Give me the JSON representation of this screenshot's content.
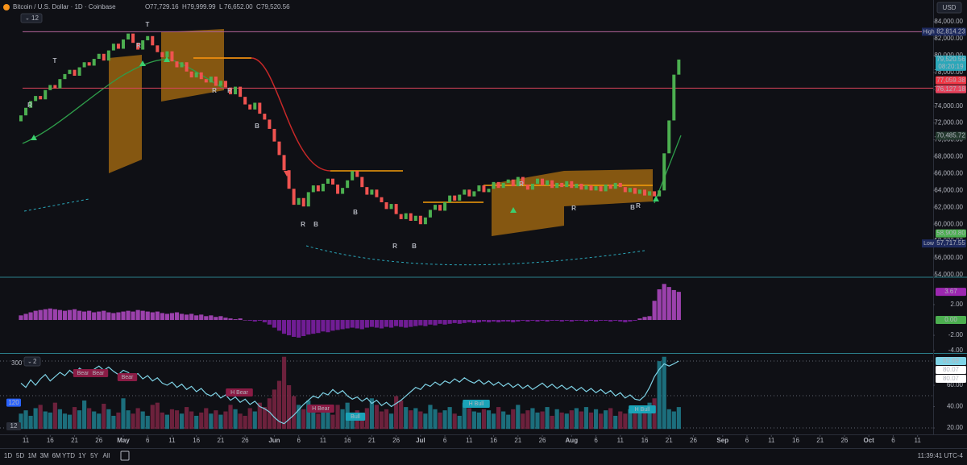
{
  "header": {
    "symbol": "Bitcoin / U.S. Dollar · 1D · Coinbase",
    "ohlc": [
      {
        "key": "O",
        "value": 77729.16,
        "label": "77,729.16"
      },
      {
        "key": "H",
        "value": 79999.99,
        "label": "79,999.99"
      },
      {
        "key": "L",
        "value": 76652.0,
        "label": "76,652.00"
      },
      {
        "key": "C",
        "value": 79520.56,
        "label": "79,520.56"
      }
    ],
    "indicator_count": 12
  },
  "currency": "USD",
  "chart_data": [
    {
      "type": "candlestick",
      "up_color": "#4caf50",
      "down_color": "#ef5350",
      "open": [
        72200,
        72900,
        73800,
        74600,
        75200,
        74800,
        75900,
        76500,
        76100,
        77200,
        77800,
        78300,
        77600,
        78600,
        79200,
        78800,
        79600,
        80200,
        79400,
        80600,
        81400,
        80800,
        81900,
        82600,
        81500,
        80700,
        81800,
        82300,
        81200,
        80400,
        79800,
        80500,
        79300,
        78600,
        79200,
        78100,
        77400,
        78000,
        77200,
        76800,
        77500,
        76400,
        77000,
        76200,
        75400,
        76300,
        75100,
        74200,
        73600,
        74400,
        73100,
        72400,
        71300,
        69800,
        68200,
        66400,
        64200,
        62300,
        63100,
        62100,
        63800,
        64600,
        63900,
        64800,
        65400,
        64700,
        63600,
        64300,
        65200,
        66300,
        65600,
        64400,
        63500,
        64100,
        63200,
        62600,
        61800,
        62400,
        61200,
        60600,
        61300,
        60400,
        61000,
        60000,
        60800,
        61700,
        62300,
        61600,
        62600,
        63400,
        62800,
        63500,
        64100,
        63300,
        63900,
        64600,
        63800,
        64200,
        65000,
        64300,
        64900,
        65300,
        64500,
        65600,
        64700,
        64100,
        64800,
        65400,
        64600,
        65200,
        64300,
        64900,
        64400,
        65100,
        64300,
        64800,
        64100,
        64600,
        64000,
        64500,
        63900,
        64700,
        64200,
        64900,
        64400,
        63800,
        64300,
        63600,
        64100,
        63400,
        63900,
        63300,
        64000,
        68400,
        72300,
        77729.16
      ],
      "close": [
        72900,
        73800,
        74600,
        75200,
        74800,
        75900,
        76500,
        76100,
        77200,
        77800,
        78300,
        77600,
        78600,
        79200,
        78800,
        79600,
        80200,
        79400,
        80600,
        81400,
        80800,
        81900,
        82600,
        81500,
        80700,
        81800,
        82300,
        81200,
        80400,
        79800,
        80500,
        79300,
        78600,
        79200,
        78100,
        77400,
        78000,
        77200,
        76800,
        77500,
        76400,
        77000,
        76200,
        75400,
        76300,
        75100,
        74200,
        73600,
        74400,
        73100,
        72400,
        71300,
        69800,
        68200,
        66400,
        64200,
        62300,
        63100,
        62100,
        63800,
        64600,
        63900,
        64800,
        65400,
        64700,
        63600,
        64300,
        65200,
        66300,
        65600,
        64400,
        63500,
        64100,
        63200,
        62600,
        61800,
        62400,
        61200,
        60600,
        61300,
        60400,
        61000,
        60000,
        60800,
        61700,
        62300,
        61600,
        62600,
        63400,
        62800,
        63500,
        64100,
        63300,
        63900,
        64600,
        63800,
        64200,
        65000,
        64300,
        64900,
        65300,
        64500,
        65600,
        64700,
        64100,
        64800,
        65400,
        64600,
        65200,
        64300,
        64900,
        64400,
        65100,
        64300,
        64800,
        64100,
        64600,
        64000,
        64500,
        63900,
        64700,
        64200,
        64900,
        64400,
        63800,
        64300,
        63600,
        64100,
        63400,
        63900,
        63300,
        64000,
        68400,
        72300,
        77729.16,
        79520.56
      ],
      "xlim": [
        -4.3,
        187.2
      ],
      "xticks": [
        {
          "value": 1,
          "label": "11"
        },
        {
          "value": 6,
          "label": "16"
        },
        {
          "value": 11,
          "label": "21"
        },
        {
          "value": 16,
          "label": "26"
        },
        {
          "value": 21,
          "label": "May"
        },
        {
          "value": 26,
          "label": "6"
        },
        {
          "value": 31,
          "label": "11"
        },
        {
          "value": 36,
          "label": "16"
        },
        {
          "value": 41,
          "label": "21"
        },
        {
          "value": 46,
          "label": "26"
        },
        {
          "value": 52,
          "label": "Jun"
        },
        {
          "value": 57,
          "label": "6"
        },
        {
          "value": 62,
          "label": "11"
        },
        {
          "value": 67,
          "label": "16"
        },
        {
          "value": 72,
          "label": "21"
        },
        {
          "value": 77,
          "label": "26"
        },
        {
          "value": 82,
          "label": "Jul"
        },
        {
          "value": 87,
          "label": "6"
        },
        {
          "value": 92,
          "label": "11"
        },
        {
          "value": 97,
          "label": "16"
        },
        {
          "value": 102,
          "label": "21"
        },
        {
          "value": 107,
          "label": "26"
        },
        {
          "value": 113,
          "label": "Aug"
        },
        {
          "value": 118,
          "label": "6"
        },
        {
          "value": 123,
          "label": "11"
        },
        {
          "value": 128,
          "label": "16"
        },
        {
          "value": 133,
          "label": "21"
        },
        {
          "value": 138,
          "label": "26"
        },
        {
          "value": 144,
          "label": "Sep"
        },
        {
          "value": 149,
          "label": "6"
        },
        {
          "value": 154,
          "label": "11"
        },
        {
          "value": 159,
          "label": "16"
        },
        {
          "value": 164,
          "label": "21"
        },
        {
          "value": 169,
          "label": "26"
        },
        {
          "value": 174,
          "label": "Oct"
        },
        {
          "value": 179,
          "label": "6"
        },
        {
          "value": 184,
          "label": "11"
        }
      ],
      "ylim": [
        53809,
        85242
      ],
      "yticks": [
        {
          "value": 84000,
          "label": "84,000.00"
        },
        {
          "value": 82000,
          "label": "82,000.00"
        },
        {
          "value": 80000,
          "label": "80,000.00"
        },
        {
          "value": 78000,
          "label": "78,000.00"
        },
        {
          "value": 76000,
          "label": "76,000.00"
        },
        {
          "value": 74000,
          "label": "74,000.00"
        },
        {
          "value": 72000,
          "label": "72,000.00"
        },
        {
          "value": 70000,
          "label": "70,000.00"
        },
        {
          "value": 68000,
          "label": "68,000.00"
        },
        {
          "value": 66000,
          "label": "66,000.00"
        },
        {
          "value": 64000,
          "label": "64,000.00"
        },
        {
          "value": 62000,
          "label": "62,000.00"
        },
        {
          "value": 60000,
          "label": "60,000.00"
        },
        {
          "value": 58000,
          "label": "58,000.00"
        },
        {
          "value": 56000,
          "label": "56,000.00"
        },
        {
          "value": 54000,
          "label": "54,000.00"
        }
      ],
      "price_labels": [
        {
          "value": 82814.23,
          "label": "82,814.23",
          "tag": "High",
          "color": "#1e2a5e",
          "text_color": "#ffffff",
          "line": "#b5649b"
        },
        {
          "value": 79520.56,
          "label": "79,520.56",
          "sublabel": "08:20:19",
          "color": "#2aa7b9",
          "text_color": "#ffffff"
        },
        {
          "value": 77059.38,
          "label": "77,059.38",
          "color": "#f23645",
          "text_color": "#ffffff"
        },
        {
          "value": 76127.18,
          "label": "76,127.18",
          "color": "#e8435d",
          "text_color": "#ffffff",
          "line": "#d8435a"
        },
        {
          "value": 70485.72,
          "label": "70,485.72",
          "color": "#23392e",
          "text_color": "#d1d4dc"
        },
        {
          "value": 58909.8,
          "label": "58,909.80",
          "color": "#4caf50",
          "text_color": "#ffffff"
        },
        {
          "value": 57717.55,
          "label": "57,717.55",
          "tag": "Low",
          "color": "#1e2a5e",
          "text_color": "#ffffff"
        }
      ]
    },
    {
      "type": "histogram",
      "up_color": "#ab47bc",
      "down_color": "#7b1fa2",
      "values": [
        0.6,
        0.8,
        1.0,
        1.2,
        1.3,
        1.4,
        1.5,
        1.4,
        1.3,
        1.2,
        1.3,
        1.4,
        1.2,
        1.1,
        1.2,
        1.0,
        1.1,
        1.2,
        1.0,
        0.9,
        1.0,
        1.1,
        1.2,
        1.1,
        1.3,
        1.2,
        1.1,
        1.0,
        1.1,
        0.9,
        0.8,
        0.9,
        1.0,
        0.8,
        0.7,
        0.8,
        0.6,
        0.7,
        0.5,
        0.6,
        0.4,
        0.5,
        0.3,
        0.2,
        0.1,
        0.2,
        0.0,
        -0.1,
        -0.2,
        -0.1,
        -0.3,
        -0.6,
        -1.0,
        -1.4,
        -1.8,
        -2.0,
        -2.2,
        -2.3,
        -2.1,
        -1.9,
        -1.8,
        -1.7,
        -1.5,
        -1.6,
        -1.4,
        -1.3,
        -1.2,
        -1.1,
        -1.0,
        -1.1,
        -1.2,
        -1.0,
        -0.9,
        -1.0,
        -1.1,
        -0.9,
        -1.0,
        -0.8,
        -0.9,
        -1.0,
        -0.9,
        -0.8,
        -0.7,
        -0.8,
        -0.6,
        -0.7,
        -0.5,
        -0.6,
        -0.5,
        -0.4,
        -0.5,
        -0.4,
        -0.3,
        -0.4,
        -0.3,
        -0.2,
        -0.3,
        -0.2,
        -0.3,
        -0.2,
        -0.2,
        -0.3,
        -0.2,
        -0.1,
        -0.2,
        -0.1,
        -0.2,
        -0.1,
        -0.2,
        -0.1,
        -0.1,
        -0.2,
        -0.1,
        -0.2,
        -0.1,
        -0.1,
        -0.2,
        -0.1,
        -0.2,
        -0.1,
        -0.1,
        -0.2,
        -0.1,
        -0.2,
        -0.3,
        -0.2,
        -0.1,
        0.2,
        0.4,
        0.5,
        2.5,
        4.0,
        4.7,
        4.3,
        3.9,
        3.67
      ],
      "ylim": [
        -4.2,
        5.47
      ],
      "yticks": [
        {
          "value": 2,
          "label": "2.00"
        },
        {
          "value": -2,
          "label": "-2.00"
        },
        {
          "value": -4,
          "label": "-4.00"
        }
      ],
      "price_labels": [
        {
          "value": 3.67,
          "label": "3.67",
          "color": "#9c27b0",
          "text_color": "#ffffff"
        },
        {
          "value": 0,
          "label": "0.00",
          "color": "#4caf50",
          "text_color": "#ffffff"
        }
      ]
    },
    {
      "type": "bar-line",
      "up_color": "#1f7f8e",
      "down_color": "#7d2443",
      "line_color": "#7fd3e6",
      "indicator_count": 2,
      "bars": [
        70,
        85,
        60,
        95,
        110,
        80,
        75,
        120,
        90,
        70,
        65,
        100,
        85,
        130,
        95,
        80,
        70,
        115,
        90,
        60,
        75,
        140,
        85,
        70,
        95,
        80,
        60,
        110,
        120,
        75,
        65,
        90,
        85,
        70,
        100,
        80,
        60,
        75,
        95,
        70,
        85,
        65,
        80,
        110,
        90,
        70,
        60,
        95,
        80,
        120,
        100,
        140,
        180,
        220,
        330,
        200,
        150,
        110,
        90,
        130,
        85,
        70,
        95,
        80,
        65,
        110,
        90,
        120,
        75,
        85,
        70,
        95,
        140,
        110,
        80,
        90,
        70,
        150,
        130,
        100,
        85,
        95,
        80,
        70,
        110,
        90,
        75,
        85,
        100,
        70,
        60,
        120,
        95,
        80,
        75,
        90,
        85,
        70,
        100,
        80,
        65,
        90,
        110,
        70,
        85,
        95,
        75,
        80,
        100,
        60,
        90,
        75,
        70,
        85,
        95,
        80,
        100,
        75,
        90,
        70,
        85,
        95,
        60,
        80,
        70,
        90,
        75,
        85,
        100,
        120,
        140,
        310,
        330,
        90,
        80,
        100
      ],
      "line": [
        62,
        58,
        65,
        60,
        66,
        70,
        64,
        68,
        72,
        69,
        74,
        70,
        76,
        73,
        71,
        75,
        78,
        74,
        77,
        73,
        70,
        74,
        72,
        68,
        71,
        66,
        69,
        64,
        67,
        62,
        60,
        63,
        58,
        61,
        56,
        59,
        54,
        57,
        52,
        50,
        53,
        48,
        51,
        46,
        49,
        44,
        47,
        42,
        45,
        40,
        38,
        35,
        30,
        26,
        24,
        28,
        32,
        37,
        42,
        46,
        50,
        48,
        53,
        51,
        56,
        52,
        55,
        50,
        47,
        49,
        45,
        48,
        43,
        46,
        41,
        44,
        40,
        43,
        46,
        50,
        54,
        58,
        56,
        61,
        59,
        63,
        60,
        64,
        62,
        66,
        63,
        67,
        64,
        62,
        65,
        61,
        64,
        60,
        63,
        59,
        62,
        58,
        61,
        57,
        60,
        56,
        59,
        62,
        58,
        61,
        57,
        60,
        56,
        59,
        55,
        58,
        54,
        57,
        53,
        56,
        52,
        55,
        50,
        53,
        48,
        51,
        47,
        46,
        50,
        58,
        68,
        75,
        80,
        78,
        80.07,
        82.69
      ],
      "ylim": [
        -25,
        340
      ],
      "yticks": [
        300
      ],
      "left_labels": [
        {
          "value": 120,
          "color": "#2962ff",
          "text_color": "#ffffff"
        },
        {
          "value": 12,
          "color": "#2a2e39",
          "text_color": "#d1d4dc"
        }
      ],
      "y2lim": [
        14,
        88.7
      ],
      "y2ticks": [
        {
          "value": 60,
          "label": "60.00"
        },
        {
          "value": 40,
          "label": "40.00"
        },
        {
          "value": 20,
          "label": "20.00"
        }
      ],
      "right_labels": [
        {
          "value": 82.69,
          "color": "#7fd3e6",
          "text_color": "#0f1015"
        },
        {
          "value": 80.07,
          "color": "#ffffff",
          "text_color": "#0f1015"
        },
        {
          "value": 80.07,
          "color": "#ffffff",
          "text_color": "#0f1015"
        }
      ],
      "tags": [
        {
          "text": "Bear",
          "color": "#8a1c45"
        },
        {
          "text": "Bear",
          "color": "#8a1c45"
        },
        {
          "text": "Bear",
          "color": "#8a1c45"
        },
        {
          "text": "H Bear",
          "color": "#8a1c45"
        },
        {
          "text": "H Bear",
          "color": "#8a1c45"
        },
        {
          "text": "Bull",
          "color": "#1aa3b8"
        },
        {
          "text": "H Bull",
          "color": "#1aa3b8"
        },
        {
          "text": "H Bull",
          "color": "#1aa3b8"
        }
      ]
    }
  ],
  "signal_labels": [
    {
      "text": "T",
      "color": "#f7c948"
    },
    {
      "text": "T",
      "color": "#f7c948"
    },
    {
      "text": "R",
      "color": "#7ee2a0"
    },
    {
      "text": "R",
      "color": "#7ee2a0"
    },
    {
      "text": "R",
      "color": "#7ee2a0"
    },
    {
      "text": "R",
      "color": "#7ee2a0"
    },
    {
      "text": "B",
      "color": "#5b8def"
    },
    {
      "text": "R",
      "color": "#7ee2a0"
    },
    {
      "text": "B",
      "color": "#5b8def"
    },
    {
      "text": "B",
      "color": "#5b8def"
    },
    {
      "text": "R",
      "color": "#7ee2a0"
    },
    {
      "text": "B",
      "color": "#5b8def"
    },
    {
      "text": "R",
      "color": "#f7c948"
    },
    {
      "text": "R",
      "color": "#7ee2a0"
    },
    {
      "text": "B",
      "color": "#5b8def"
    },
    {
      "text": "R",
      "color": "#7ee2a0"
    }
  ],
  "toolbar": {
    "ranges": [
      "1D",
      "5D",
      "1M",
      "3M",
      "6M",
      "YTD",
      "1Y",
      "5Y",
      "All"
    ],
    "clock": "11:39:41 UTC-4"
  }
}
